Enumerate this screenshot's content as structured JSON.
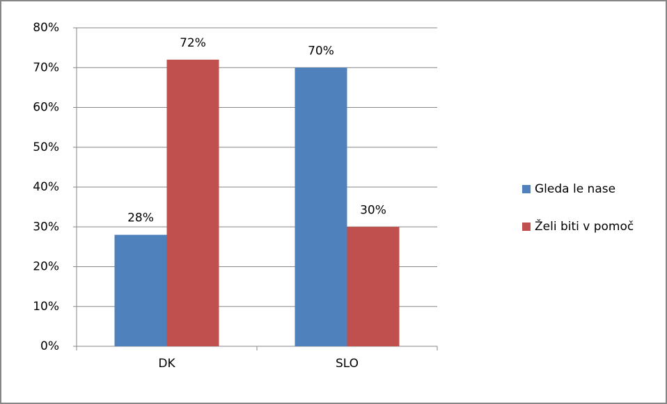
{
  "chart_data": {
    "type": "bar",
    "categories": [
      "DK",
      "SLO"
    ],
    "series": [
      {
        "name": "Gleda le nase",
        "color": "#4f81bd",
        "values": [
          28,
          70
        ],
        "value_labels": [
          "28%",
          "70%"
        ]
      },
      {
        "name": "Želi biti v pomoč",
        "color": "#c0504d",
        "values": [
          72,
          30
        ],
        "value_labels": [
          "72%",
          "30%"
        ]
      }
    ],
    "ylim": [
      0,
      80
    ],
    "yticks": [
      {
        "value": 0,
        "label": "0%"
      },
      {
        "value": 10,
        "label": "10%"
      },
      {
        "value": 20,
        "label": "20%"
      },
      {
        "value": 30,
        "label": "30%"
      },
      {
        "value": 40,
        "label": "40%"
      },
      {
        "value": 50,
        "label": "50%"
      },
      {
        "value": 60,
        "label": "60%"
      },
      {
        "value": 70,
        "label": "70%"
      },
      {
        "value": 80,
        "label": "80%"
      }
    ],
    "grid": true,
    "legend": "right"
  }
}
